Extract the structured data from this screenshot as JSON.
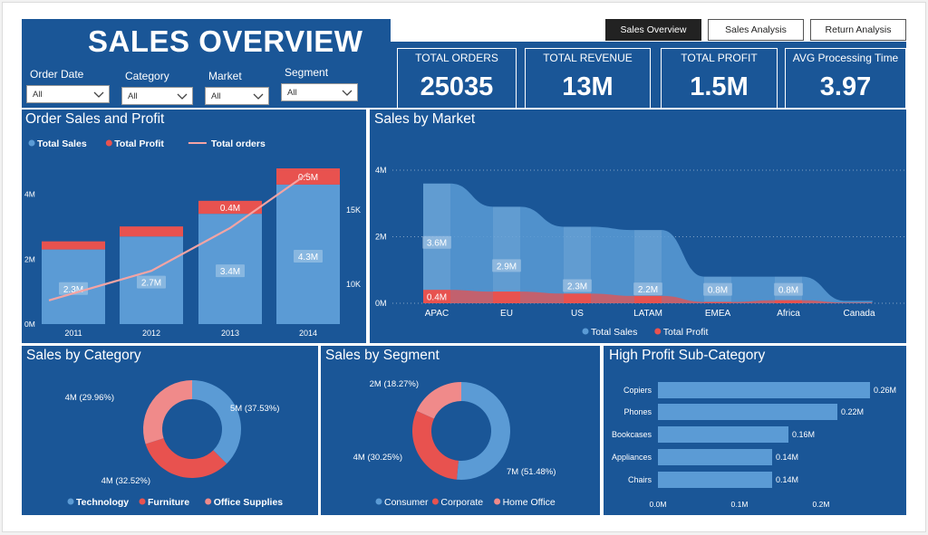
{
  "header": {
    "title": "SALES OVERVIEW"
  },
  "nav": {
    "buttons": [
      {
        "label": "Sales Overview",
        "active": true
      },
      {
        "label": "Sales Analysis",
        "active": false
      },
      {
        "label": "Return Analysis",
        "active": false
      }
    ]
  },
  "filters": [
    {
      "label": "Order Date",
      "value": "All"
    },
    {
      "label": "Category",
      "value": "All"
    },
    {
      "label": "Market",
      "value": "All"
    },
    {
      "label": "Segment",
      "value": "All"
    }
  ],
  "kpis": [
    {
      "label": "TOTAL ORDERS",
      "value": "25035"
    },
    {
      "label": "TOTAL REVENUE",
      "value": "13M"
    },
    {
      "label": "TOTAL PROFIT",
      "value": "1.5M"
    },
    {
      "label": "AVG Processing Time",
      "value": "3.97"
    }
  ],
  "colors": {
    "panel": "#1a5697",
    "sales": "#5b9bd5",
    "profit": "#e8524f",
    "orders_line": "#f4a4a4",
    "home_office": "#f08a8a"
  },
  "chart_data": [
    {
      "id": "order_sales_profit",
      "type": "bar",
      "title": "Order Sales and Profit",
      "legend": [
        "Total Sales",
        "Total Profit",
        "Total orders"
      ],
      "legend_position": "top-left",
      "categories": [
        "2011",
        "2012",
        "2013",
        "2014"
      ],
      "series": [
        {
          "name": "Total Sales",
          "values": [
            2.3,
            2.7,
            3.4,
            4.3
          ],
          "labels": [
            "2.3M",
            "2.7M",
            "3.4M",
            "4.3M"
          ]
        },
        {
          "name": "Total Profit",
          "values": [
            0.25,
            0.31,
            0.4,
            0.5
          ],
          "labels": [
            "",
            "",
            "0.4M",
            "0.5M"
          ]
        },
        {
          "name": "Total orders",
          "type": "line",
          "axis": "right",
          "values": [
            8900,
            10900,
            13800,
            17500
          ]
        }
      ],
      "y_ticks": [
        "0M",
        "2M",
        "4M"
      ],
      "ylim": [
        0,
        4.8
      ],
      "y2_ticks": [
        "10K",
        "15K"
      ],
      "y2lim": [
        7300,
        18500
      ]
    },
    {
      "id": "sales_by_market",
      "type": "area",
      "title": "Sales by Market",
      "categories": [
        "APAC",
        "EU",
        "US",
        "LATAM",
        "EMEA",
        "Africa",
        "Canada"
      ],
      "series": [
        {
          "name": "Total Sales",
          "values": [
            3.6,
            2.9,
            2.3,
            2.2,
            0.8,
            0.8,
            0.07
          ],
          "labels": [
            "3.6M",
            "2.9M",
            "2.3M",
            "2.2M",
            "0.8M",
            "0.8M",
            ""
          ]
        },
        {
          "name": "Total Profit",
          "values": [
            0.4,
            0.35,
            0.29,
            0.22,
            0.04,
            0.09,
            0.02
          ],
          "labels": [
            "0.4M",
            "",
            "",
            "",
            "",
            "",
            ""
          ]
        }
      ],
      "y_ticks": [
        "0M",
        "2M",
        "4M"
      ],
      "ylim": [
        0,
        4.2
      ],
      "legend": [
        "Total Sales",
        "Total Profit"
      ],
      "legend_position": "bottom-center"
    },
    {
      "id": "sales_by_category",
      "type": "pie",
      "title": "Sales by Category",
      "slices": [
        {
          "name": "Technology",
          "label": "5M (37.53%)",
          "value": 37.53
        },
        {
          "name": "Furniture",
          "label": "4M (32.52%)",
          "value": 32.52
        },
        {
          "name": "Office Supplies",
          "label": "4M (29.96%)",
          "value": 29.96
        }
      ],
      "legend_position": "bottom-center"
    },
    {
      "id": "sales_by_segment",
      "type": "pie",
      "title": "Sales by Segment",
      "slices": [
        {
          "name": "Consumer",
          "label": "7M (51.48%)",
          "value": 51.48
        },
        {
          "name": "Corporate",
          "label": "4M (30.25%)",
          "value": 30.25
        },
        {
          "name": "Home Office",
          "label": "2M (18.27%)",
          "value": 18.27
        }
      ],
      "legend_position": "bottom-center"
    },
    {
      "id": "high_profit_subcategory",
      "type": "bar",
      "orientation": "horizontal",
      "title": "High Profit Sub-Category",
      "categories": [
        "Copiers",
        "Phones",
        "Bookcases",
        "Appliances",
        "Chairs"
      ],
      "values": [
        0.26,
        0.22,
        0.16,
        0.14,
        0.14
      ],
      "labels": [
        "0.26M",
        "0.22M",
        "0.16M",
        "0.14M",
        "0.14M"
      ],
      "x_ticks": [
        "0.0M",
        "0.1M",
        "0.2M"
      ],
      "xlim": [
        0,
        0.3
      ]
    }
  ]
}
